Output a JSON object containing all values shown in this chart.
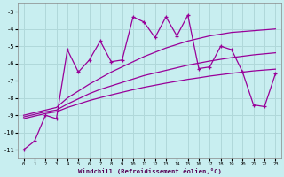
{
  "xlabel": "Windchill (Refroidissement éolien,°C)",
  "x_data": [
    0,
    1,
    2,
    3,
    4,
    5,
    6,
    7,
    8,
    9,
    10,
    11,
    12,
    13,
    14,
    15,
    16,
    17,
    18,
    19,
    20,
    21,
    22,
    23
  ],
  "y_main": [
    -11.0,
    -10.5,
    -9.0,
    -9.2,
    -5.2,
    -6.5,
    -5.8,
    -4.7,
    -5.9,
    -5.8,
    -3.3,
    -3.6,
    -4.5,
    -3.3,
    -4.4,
    -3.2,
    -6.3,
    -6.2,
    -5.0,
    -5.2,
    -6.5,
    -8.4,
    -8.5,
    -6.6
  ],
  "y_reg_top": [
    -9.0,
    -8.85,
    -8.7,
    -8.55,
    -8.0,
    -7.6,
    -7.2,
    -6.85,
    -6.5,
    -6.2,
    -5.9,
    -5.6,
    -5.35,
    -5.1,
    -4.9,
    -4.7,
    -4.55,
    -4.4,
    -4.3,
    -4.2,
    -4.15,
    -4.1,
    -4.05,
    -4.0
  ],
  "y_reg_mid": [
    -9.1,
    -8.95,
    -8.8,
    -8.7,
    -8.35,
    -8.05,
    -7.75,
    -7.5,
    -7.3,
    -7.1,
    -6.9,
    -6.7,
    -6.55,
    -6.4,
    -6.25,
    -6.1,
    -5.98,
    -5.86,
    -5.76,
    -5.66,
    -5.58,
    -5.5,
    -5.44,
    -5.38
  ],
  "y_reg_bot": [
    -9.2,
    -9.05,
    -8.9,
    -8.8,
    -8.55,
    -8.35,
    -8.15,
    -7.98,
    -7.82,
    -7.67,
    -7.52,
    -7.38,
    -7.26,
    -7.14,
    -7.03,
    -6.92,
    -6.83,
    -6.73,
    -6.65,
    -6.57,
    -6.5,
    -6.43,
    -6.38,
    -6.33
  ],
  "line_color": "#990099",
  "bg_color": "#c8eef0",
  "grid_color": "#b0d8da",
  "ylim": [
    -11.5,
    -2.5
  ],
  "xlim": [
    -0.5,
    23.5
  ],
  "yticks": [
    -3,
    -4,
    -5,
    -6,
    -7,
    -8,
    -9,
    -10,
    -11
  ],
  "xticks": [
    0,
    1,
    2,
    3,
    4,
    5,
    6,
    7,
    8,
    9,
    10,
    11,
    12,
    13,
    14,
    15,
    16,
    17,
    18,
    19,
    20,
    21,
    22,
    23
  ]
}
